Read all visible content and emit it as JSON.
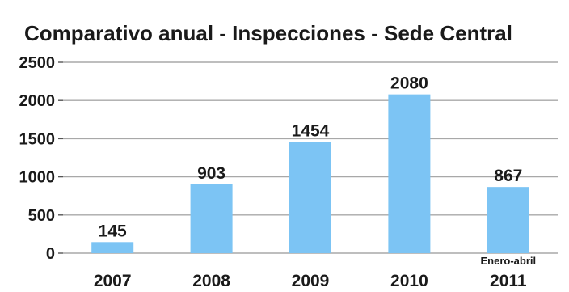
{
  "chart_data": {
    "type": "bar",
    "title": "Comparativo anual - Inspecciones - Sede Central",
    "categories": [
      "2007",
      "2008",
      "2009",
      "2010",
      "2011"
    ],
    "values": [
      145,
      903,
      1454,
      2080,
      867
    ],
    "data_labels": [
      "145",
      "903",
      "1454",
      "2080",
      "867"
    ],
    "category_notes": [
      "",
      "",
      "",
      "",
      "Enero-abril"
    ],
    "yticks": [
      "0",
      "500",
      "1000",
      "1500",
      "2000",
      "2500"
    ],
    "ylim": [
      0,
      2500
    ],
    "grid": true,
    "legend": "none",
    "bar_color": "#7cc4f4"
  }
}
